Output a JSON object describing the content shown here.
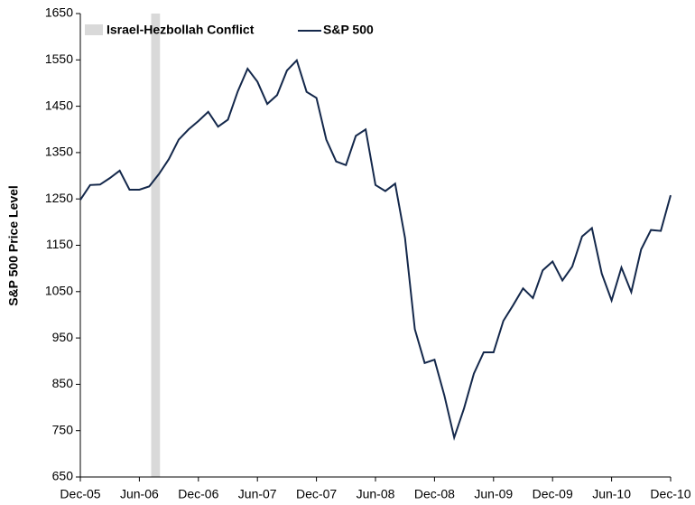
{
  "chart_data": {
    "type": "line",
    "y_label": "S&P 500 Price Level",
    "categories": [
      "Dec-05",
      null,
      null,
      null,
      null,
      null,
      "Jun-06",
      null,
      null,
      null,
      null,
      null,
      "Dec-06",
      null,
      null,
      null,
      null,
      null,
      "Jun-07",
      null,
      null,
      null,
      null,
      null,
      "Dec-07",
      null,
      null,
      null,
      null,
      null,
      "Jun-08",
      null,
      null,
      null,
      null,
      null,
      "Dec-08",
      null,
      null,
      null,
      null,
      null,
      "Jun-09",
      null,
      null,
      null,
      null,
      null,
      "Dec-09",
      null,
      null,
      null,
      null,
      null,
      "Jun-10",
      null,
      null,
      null,
      null,
      null,
      "Dec-10"
    ],
    "series": [
      {
        "name": "S&P 500",
        "color": "#14284b",
        "values": [
          1248,
          1280,
          1281,
          1295,
          1311,
          1270,
          1270,
          1277,
          1304,
          1336,
          1378,
          1400,
          1418,
          1438,
          1406,
          1421,
          1482,
          1531,
          1503,
          1455,
          1474,
          1527,
          1549,
          1481,
          1468,
          1378,
          1331,
          1323,
          1386,
          1400,
          1280,
          1267,
          1283,
          1166,
          969,
          896,
          903,
          826,
          735,
          798,
          873,
          919,
          919,
          987,
          1021,
          1057,
          1036,
          1096,
          1115,
          1074,
          1104,
          1169,
          1187,
          1089,
          1031,
          1102,
          1049,
          1141,
          1183,
          1181,
          1258
        ]
      }
    ],
    "highlight": {
      "name": "Israel-Hezbollah Conflict",
      "color": "#d9d9d9",
      "span": [
        7.2,
        8.1
      ]
    },
    "ylim": [
      650,
      1650
    ],
    "yticks": [
      650,
      750,
      850,
      950,
      1050,
      1150,
      1250,
      1350,
      1450,
      1550,
      1650
    ],
    "grid": false
  }
}
